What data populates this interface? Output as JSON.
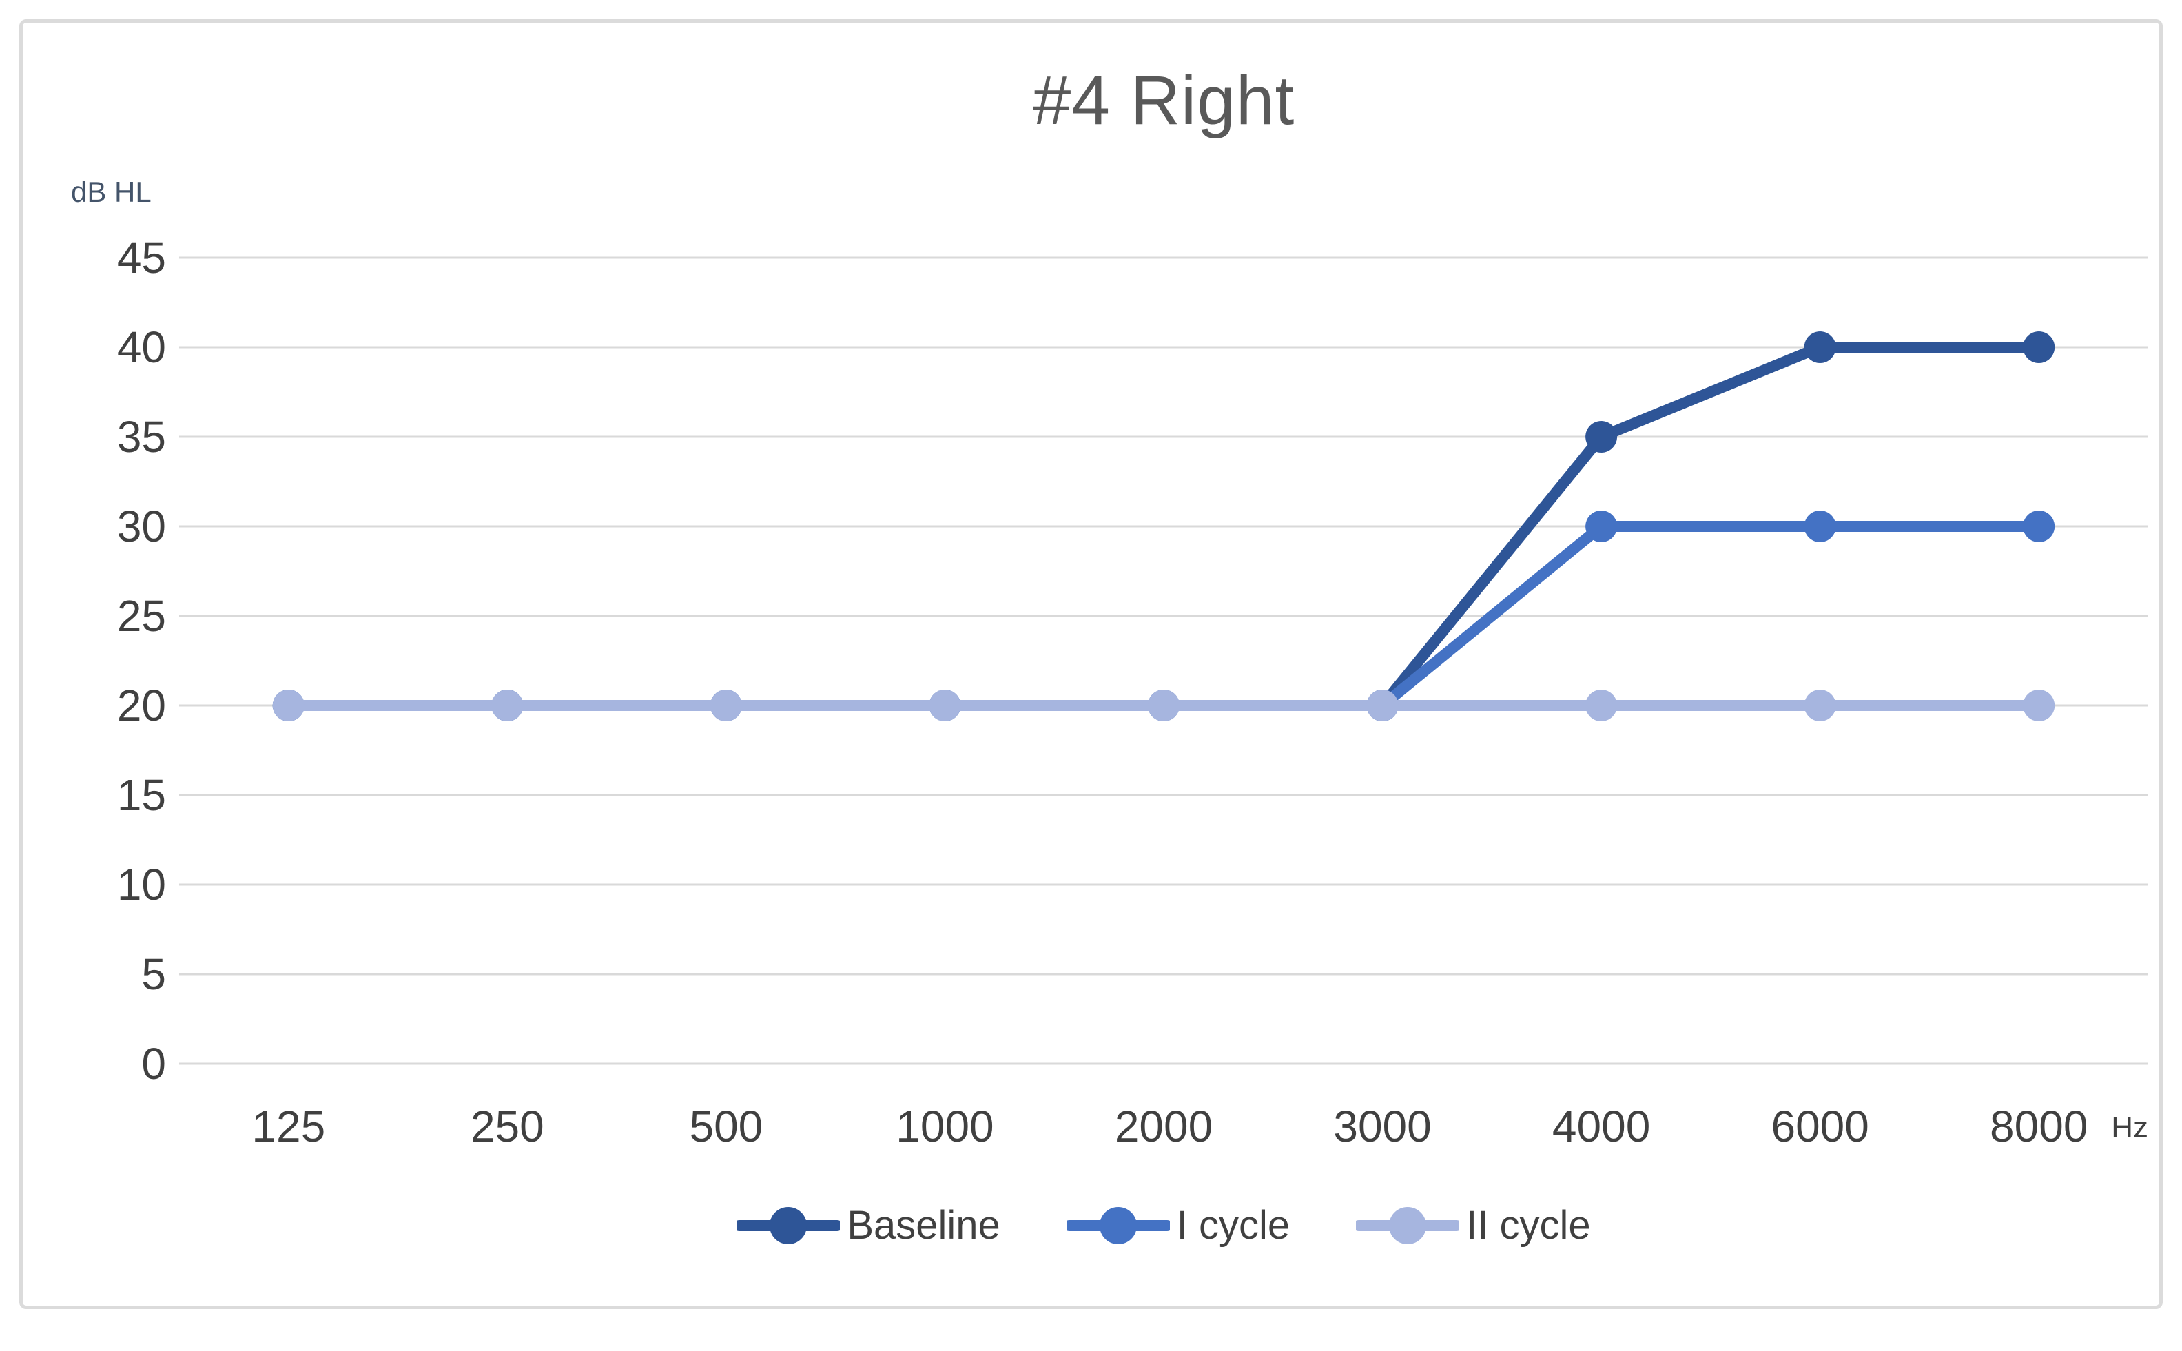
{
  "chart_data": {
    "type": "line",
    "title": "#4 Right",
    "y_unit": "dB HL",
    "x_unit": "Hz",
    "categories": [
      "125",
      "250",
      "500",
      "1000",
      "2000",
      "3000",
      "4000",
      "6000",
      "8000"
    ],
    "y_ticks": [
      45,
      40,
      35,
      30,
      25,
      20,
      15,
      10,
      5,
      0
    ],
    "ylim": [
      0,
      45
    ],
    "grid": "horizontal",
    "legend_position": "bottom",
    "series": [
      {
        "name": "Baseline",
        "color": "#2E5597",
        "values": [
          20,
          20,
          20,
          20,
          20,
          20,
          35,
          40,
          40
        ]
      },
      {
        "name": "I cycle",
        "color": "#4472C4",
        "values": [
          20,
          20,
          20,
          20,
          20,
          20,
          30,
          30,
          30
        ]
      },
      {
        "name": "II cycle",
        "color": "#A6B5DF",
        "values": [
          20,
          20,
          20,
          20,
          20,
          20,
          20,
          20,
          20
        ]
      }
    ]
  },
  "styles": {
    "background": "#FFFFFF",
    "border_color": "#DBDBDB",
    "grid_color": "#D9D9D9",
    "title_color": "#595959",
    "tick_color": "#404040",
    "unit_color": "#44546A",
    "legend_text_color": "#404040"
  }
}
